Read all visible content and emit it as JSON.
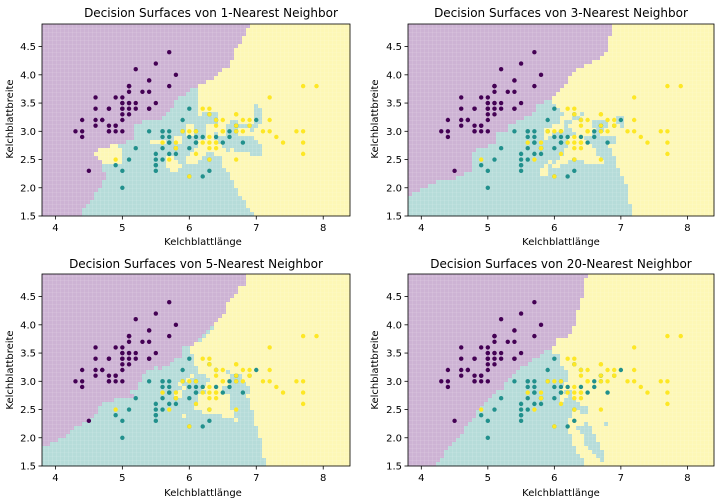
{
  "colors": {
    "region_setosa": "#cdb3d4",
    "region_versicolor": "#b6dcd9",
    "region_virginica": "#fdf7b6",
    "point_setosa": "#440154",
    "point_versicolor": "#21908c",
    "point_virginica": "#fde725"
  },
  "chart_data": [
    {
      "type": "scatter",
      "title": "Decision Surfaces von 1-Nearest Neighbor",
      "xlabel": "Kelchblattlänge",
      "ylabel": "Kelchblattbreite",
      "xlim": [
        3.8,
        8.4
      ],
      "ylim": [
        1.5,
        4.9
      ],
      "xticks": [
        "4",
        "5",
        "6",
        "7",
        "8"
      ],
      "yticks": [
        "1.5",
        "2.0",
        "2.5",
        "3.0",
        "3.5",
        "4.0",
        "4.5"
      ],
      "k": 1
    },
    {
      "type": "scatter",
      "title": "Decision Surfaces von 3-Nearest Neighbor",
      "xlabel": "Kelchblattlänge",
      "ylabel": "Kelchblattbreite",
      "xlim": [
        3.8,
        8.4
      ],
      "ylim": [
        1.5,
        4.9
      ],
      "xticks": [
        "4",
        "5",
        "6",
        "7",
        "8"
      ],
      "yticks": [
        "1.5",
        "2.0",
        "2.5",
        "3.0",
        "3.5",
        "4.0",
        "4.5"
      ],
      "k": 3
    },
    {
      "type": "scatter",
      "title": "Decision Surfaces von 5-Nearest Neighbor",
      "xlabel": "Kelchblattlänge",
      "ylabel": "Kelchblattbreite",
      "xlim": [
        3.8,
        8.4
      ],
      "ylim": [
        1.5,
        4.9
      ],
      "xticks": [
        "4",
        "5",
        "6",
        "7",
        "8"
      ],
      "yticks": [
        "1.5",
        "2.0",
        "2.5",
        "3.0",
        "3.5",
        "4.0",
        "4.5"
      ],
      "k": 5
    },
    {
      "type": "scatter",
      "title": "Decision Surfaces von 20-Nearest Neighbor",
      "xlabel": "Kelchblattlänge",
      "ylabel": "Kelchblattbreite",
      "xlim": [
        3.8,
        8.4
      ],
      "ylim": [
        1.5,
        4.9
      ],
      "xticks": [
        "4",
        "5",
        "6",
        "7",
        "8"
      ],
      "yticks": [
        "1.5",
        "2.0",
        "2.5",
        "3.0",
        "3.5",
        "4.0",
        "4.5"
      ],
      "k": 20
    }
  ],
  "points": {
    "setosa": [
      [
        5.1,
        3.5
      ],
      [
        4.9,
        3.0
      ],
      [
        4.7,
        3.2
      ],
      [
        4.6,
        3.1
      ],
      [
        5.0,
        3.6
      ],
      [
        5.4,
        3.9
      ],
      [
        4.6,
        3.4
      ],
      [
        5.0,
        3.4
      ],
      [
        4.4,
        2.9
      ],
      [
        4.9,
        3.1
      ],
      [
        5.4,
        3.7
      ],
      [
        4.8,
        3.4
      ],
      [
        4.8,
        3.0
      ],
      [
        4.3,
        3.0
      ],
      [
        5.8,
        4.0
      ],
      [
        5.7,
        4.4
      ],
      [
        5.4,
        3.9
      ],
      [
        5.1,
        3.5
      ],
      [
        5.7,
        3.8
      ],
      [
        5.1,
        3.8
      ],
      [
        5.4,
        3.4
      ],
      [
        5.1,
        3.7
      ],
      [
        4.6,
        3.6
      ],
      [
        5.1,
        3.3
      ],
      [
        4.8,
        3.4
      ],
      [
        5.0,
        3.0
      ],
      [
        5.0,
        3.4
      ],
      [
        5.2,
        3.5
      ],
      [
        5.2,
        3.4
      ],
      [
        4.7,
        3.2
      ],
      [
        4.8,
        3.1
      ],
      [
        5.4,
        3.4
      ],
      [
        5.2,
        4.1
      ],
      [
        5.5,
        4.2
      ],
      [
        4.9,
        3.1
      ],
      [
        5.0,
        3.2
      ],
      [
        5.5,
        3.5
      ],
      [
        4.9,
        3.6
      ],
      [
        4.4,
        3.0
      ],
      [
        5.1,
        3.4
      ],
      [
        5.0,
        3.5
      ],
      [
        4.5,
        2.3
      ],
      [
        4.4,
        3.2
      ],
      [
        5.0,
        3.5
      ],
      [
        5.1,
        3.8
      ],
      [
        4.8,
        3.0
      ],
      [
        5.1,
        3.8
      ],
      [
        4.6,
        3.2
      ],
      [
        5.3,
        3.7
      ],
      [
        5.0,
        3.3
      ]
    ],
    "versicolor": [
      [
        7.0,
        3.2
      ],
      [
        6.4,
        3.2
      ],
      [
        6.9,
        3.1
      ],
      [
        5.5,
        2.3
      ],
      [
        6.5,
        2.8
      ],
      [
        5.7,
        2.8
      ],
      [
        6.3,
        3.3
      ],
      [
        4.9,
        2.4
      ],
      [
        6.6,
        2.9
      ],
      [
        5.2,
        2.7
      ],
      [
        5.0,
        2.0
      ],
      [
        5.9,
        3.0
      ],
      [
        6.0,
        2.2
      ],
      [
        6.1,
        2.9
      ],
      [
        5.6,
        2.9
      ],
      [
        6.7,
        3.1
      ],
      [
        5.6,
        3.0
      ],
      [
        5.8,
        2.7
      ],
      [
        6.2,
        2.2
      ],
      [
        5.6,
        2.5
      ],
      [
        5.9,
        3.2
      ],
      [
        6.1,
        2.8
      ],
      [
        6.3,
        2.5
      ],
      [
        6.1,
        2.8
      ],
      [
        6.4,
        2.9
      ],
      [
        6.6,
        3.0
      ],
      [
        6.8,
        2.8
      ],
      [
        6.7,
        3.0
      ],
      [
        6.0,
        2.9
      ],
      [
        5.7,
        2.6
      ],
      [
        5.5,
        2.4
      ],
      [
        5.5,
        2.4
      ],
      [
        5.8,
        2.7
      ],
      [
        6.0,
        2.7
      ],
      [
        5.4,
        3.0
      ],
      [
        6.0,
        3.4
      ],
      [
        6.7,
        3.1
      ],
      [
        6.3,
        2.3
      ],
      [
        5.6,
        3.0
      ],
      [
        5.5,
        2.5
      ],
      [
        5.5,
        2.6
      ],
      [
        6.1,
        3.0
      ],
      [
        5.8,
        2.6
      ],
      [
        5.0,
        2.3
      ],
      [
        5.6,
        2.7
      ],
      [
        5.7,
        3.0
      ],
      [
        5.7,
        2.9
      ],
      [
        6.2,
        2.9
      ],
      [
        5.1,
        2.5
      ],
      [
        5.7,
        2.8
      ]
    ],
    "virginica": [
      [
        6.3,
        3.3
      ],
      [
        5.8,
        2.7
      ],
      [
        7.1,
        3.0
      ],
      [
        6.3,
        2.9
      ],
      [
        6.5,
        3.0
      ],
      [
        7.6,
        3.0
      ],
      [
        4.9,
        2.5
      ],
      [
        7.3,
        2.9
      ],
      [
        6.7,
        2.5
      ],
      [
        7.2,
        3.6
      ],
      [
        6.5,
        3.2
      ],
      [
        6.4,
        2.7
      ],
      [
        6.8,
        3.0
      ],
      [
        5.7,
        2.5
      ],
      [
        5.8,
        2.8
      ],
      [
        6.4,
        3.2
      ],
      [
        6.5,
        3.0
      ],
      [
        7.7,
        3.8
      ],
      [
        7.7,
        2.6
      ],
      [
        6.0,
        2.2
      ],
      [
        6.9,
        3.2
      ],
      [
        5.6,
        2.8
      ],
      [
        7.7,
        2.8
      ],
      [
        6.3,
        2.7
      ],
      [
        6.7,
        3.3
      ],
      [
        7.2,
        3.2
      ],
      [
        6.2,
        2.8
      ],
      [
        6.1,
        3.0
      ],
      [
        6.4,
        2.8
      ],
      [
        7.2,
        3.0
      ],
      [
        7.4,
        2.8
      ],
      [
        7.9,
        3.8
      ],
      [
        6.4,
        2.8
      ],
      [
        6.3,
        2.8
      ],
      [
        6.1,
        2.6
      ],
      [
        7.7,
        3.0
      ],
      [
        6.3,
        3.4
      ],
      [
        6.4,
        3.1
      ],
      [
        6.0,
        3.0
      ],
      [
        6.9,
        3.1
      ],
      [
        6.7,
        3.1
      ],
      [
        6.9,
        3.1
      ],
      [
        5.8,
        2.7
      ],
      [
        6.8,
        3.2
      ],
      [
        6.7,
        3.3
      ],
      [
        6.7,
        3.0
      ],
      [
        6.3,
        2.5
      ],
      [
        6.5,
        3.0
      ],
      [
        6.2,
        3.4
      ],
      [
        5.9,
        3.0
      ]
    ]
  }
}
